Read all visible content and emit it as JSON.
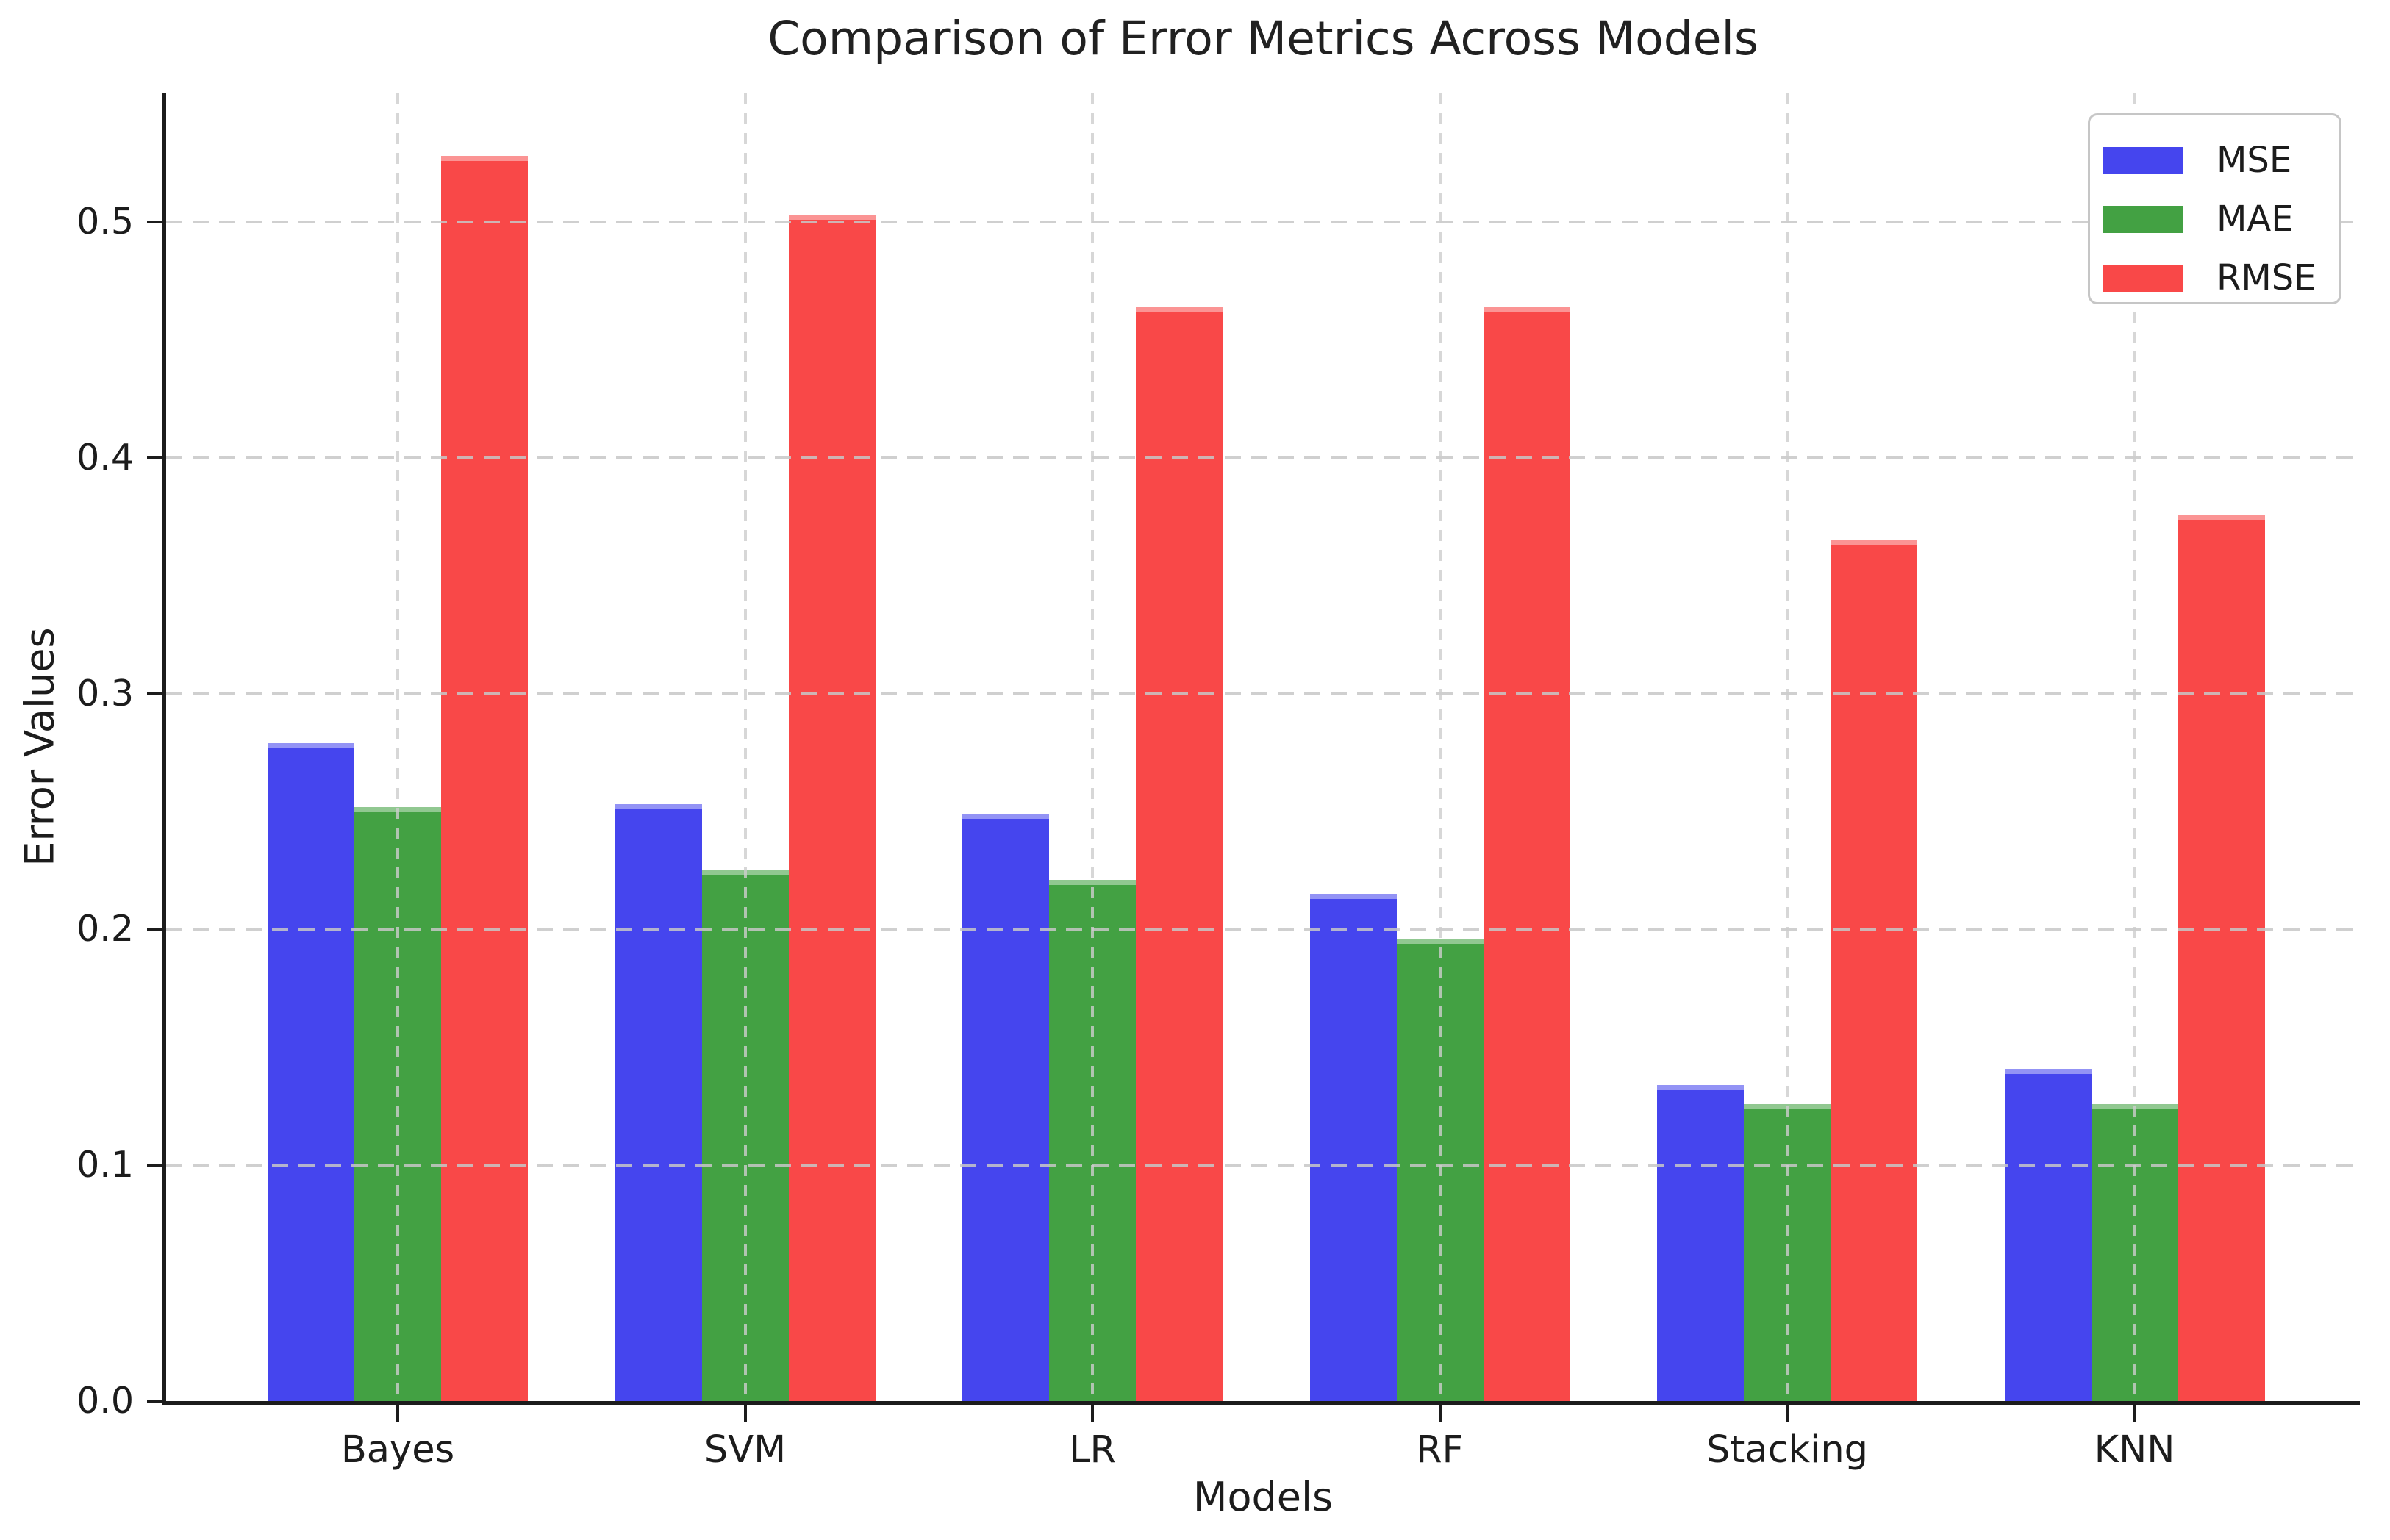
{
  "figure": {
    "title": "Comparison of Error Metrics Across Models",
    "xlabel": "Models",
    "ylabel": "Error Values"
  },
  "chart_data": {
    "type": "bar",
    "title": "Comparison of Error Metrics Across Models",
    "xlabel": "Models",
    "ylabel": "Error Values",
    "categories": [
      "Bayes",
      "SVM",
      "LR",
      "RF",
      "Stacking",
      "KNN"
    ],
    "series": [
      {
        "name": "MSE",
        "color": "#4545EE",
        "values": [
          0.279,
          0.253,
          0.249,
          0.215,
          0.134,
          0.141
        ]
      },
      {
        "name": "MAE",
        "color": "#43A143",
        "values": [
          0.252,
          0.225,
          0.221,
          0.196,
          0.126,
          0.126
        ]
      },
      {
        "name": "RMSE",
        "color": "#F94848",
        "values": [
          0.528,
          0.503,
          0.464,
          0.464,
          0.365,
          0.376
        ]
      }
    ],
    "ylim": [
      0,
      0.5545
    ],
    "ytick_values": [
      0.0,
      0.1,
      0.2,
      0.3,
      0.4,
      0.5
    ],
    "ytick_labels": [
      "0.0",
      "0.1",
      "0.2",
      "0.3",
      "0.4",
      "0.5"
    ],
    "grid": true,
    "grid_style": "dashed",
    "grid_color": "#c7c7c7",
    "legend_position": "upper right",
    "legend_labels": [
      "MSE",
      "MAE",
      "RMSE"
    ]
  },
  "colors": {
    "background": "#ffffff",
    "axis": "#1c1c1c",
    "mse_blue": "#4545EE",
    "mae_green": "#43A143",
    "rmse_red": "#F94848"
  }
}
